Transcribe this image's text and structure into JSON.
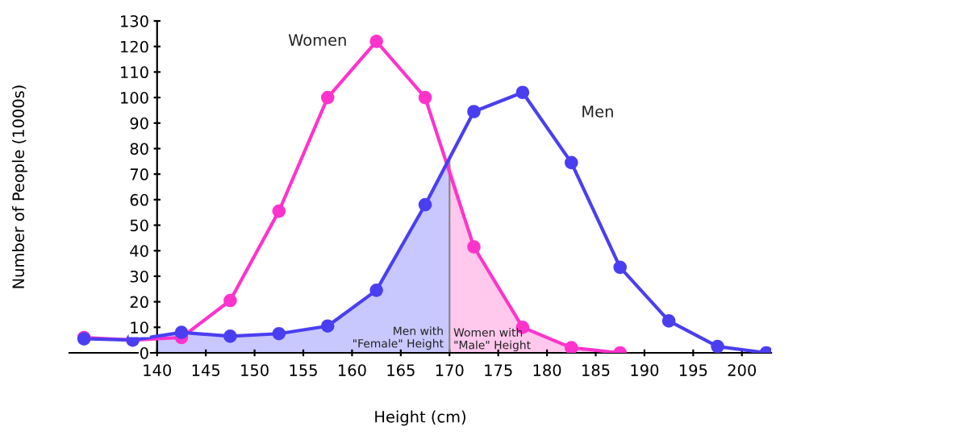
{
  "chart_data": {
    "type": "line",
    "xlabel": "Height (cm)",
    "ylabel": "Number of People (1000s)",
    "x": [
      132.5,
      137.5,
      142.5,
      147.5,
      152.5,
      157.5,
      162.5,
      167.5,
      172.5,
      177.5,
      182.5,
      187.5,
      192.5,
      197.5,
      202.5
    ],
    "series": [
      {
        "type": "area",
        "marker": "none",
        "name": "Men with\n\"Female\" Height",
        "color": "#c8c8ff",
        "x": [
          140,
          142.5,
          147.5,
          152.5,
          157.5,
          162.5,
          167.5,
          170
        ],
        "values": [
          6.5,
          8,
          6.5,
          7.5,
          10.5,
          24.5,
          58,
          75
        ]
      },
      {
        "type": "area",
        "marker": "none",
        "name": "Women with\n\"Male\" Height",
        "color": "#ffc8ec",
        "x": [
          170,
          172.5,
          177.5,
          182.5,
          187.5
        ],
        "values": [
          75,
          41.5,
          10,
          2,
          0
        ]
      },
      {
        "name": "Women",
        "color": "#ff33cc",
        "x": [
          132.5,
          137.5,
          142.5,
          147.5,
          152.5,
          157.5,
          162.5,
          167.5,
          172.5,
          177.5,
          182.5,
          187.5
        ],
        "values": [
          6,
          5,
          6,
          20.5,
          55.5,
          100,
          122,
          100,
          41.5,
          10,
          2,
          0
        ]
      },
      {
        "name": "Men",
        "color": "#4a3ff0",
        "values": [
          5.5,
          5,
          8,
          6.5,
          7.5,
          10.5,
          24.5,
          58,
          94.5,
          102,
          74.5,
          33.5,
          12.5,
          2.5,
          0
        ]
      }
    ],
    "xlim": [
      131,
      203
    ],
    "ylim": [
      0,
      130
    ],
    "xticks": [
      140,
      145,
      150,
      155,
      160,
      165,
      170,
      175,
      180,
      185,
      190,
      195,
      200
    ],
    "yticks": [
      0,
      10,
      20,
      30,
      40,
      50,
      60,
      70,
      80,
      90,
      100,
      110,
      120,
      130
    ],
    "grid": false,
    "legend": false,
    "marker": "circle",
    "line_style": "solid"
  }
}
